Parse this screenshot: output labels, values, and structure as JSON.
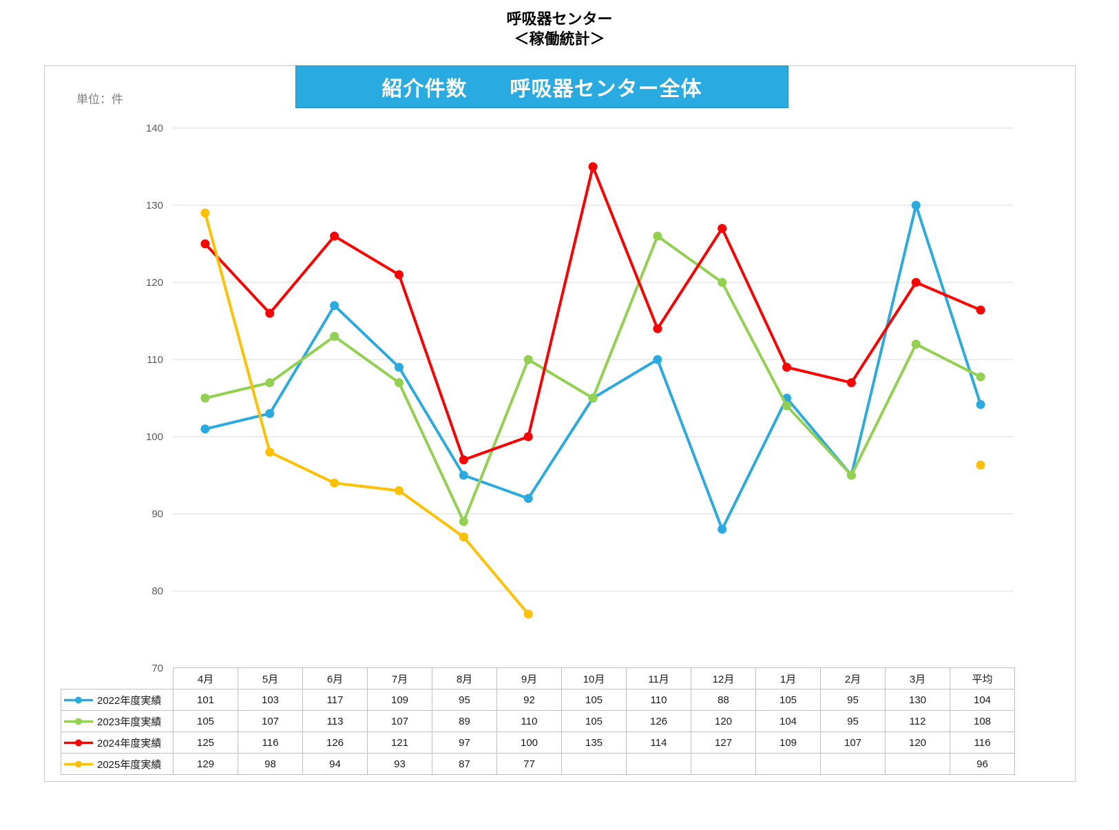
{
  "header": {
    "title_line1": "呼吸器センター",
    "title_line2": "＜稼働統計＞"
  },
  "chart": {
    "unit_label": "単位：件",
    "banner_title": "紹介件数　　呼吸器センター全体",
    "banner_color": "#29ABE2",
    "gridline_color": "#d9d9d9",
    "axis_label_color": "#595959"
  },
  "chart_data": {
    "type": "line",
    "title": "紹介件数　呼吸器センター全体",
    "unit": "件",
    "categories": [
      "4月",
      "5月",
      "6月",
      "7月",
      "8月",
      "9月",
      "10月",
      "11月",
      "12月",
      "1月",
      "2月",
      "3月",
      "平均"
    ],
    "ylim": [
      70,
      140
    ],
    "ytick_step": 10,
    "grid": "horizontal",
    "legend_position": "table-left",
    "series": [
      {
        "name": "2022年度実績",
        "color": "#29ABE2",
        "values": [
          101,
          103,
          117,
          109,
          95,
          92,
          105,
          110,
          88,
          105,
          95,
          130
        ],
        "average": 104.17,
        "average_label": "104",
        "average_disconnected": false
      },
      {
        "name": "2023年度実績",
        "color": "#92D050",
        "values": [
          105,
          107,
          113,
          107,
          89,
          110,
          105,
          126,
          120,
          104,
          95,
          112
        ],
        "average": 107.75,
        "average_label": "108",
        "average_disconnected": false
      },
      {
        "name": "2024年度実績",
        "color": "#FF0000",
        "values": [
          125,
          116,
          126,
          121,
          97,
          100,
          135,
          114,
          127,
          109,
          107,
          120
        ],
        "average": 116.42,
        "average_label": "116",
        "average_disconnected": false
      },
      {
        "name": "2025年度実績",
        "color": "#FFC000",
        "values": [
          129,
          98,
          94,
          93,
          87,
          77,
          null,
          null,
          null,
          null,
          null,
          null
        ],
        "average": 96.33,
        "average_label": "96",
        "average_disconnected": true
      }
    ]
  }
}
